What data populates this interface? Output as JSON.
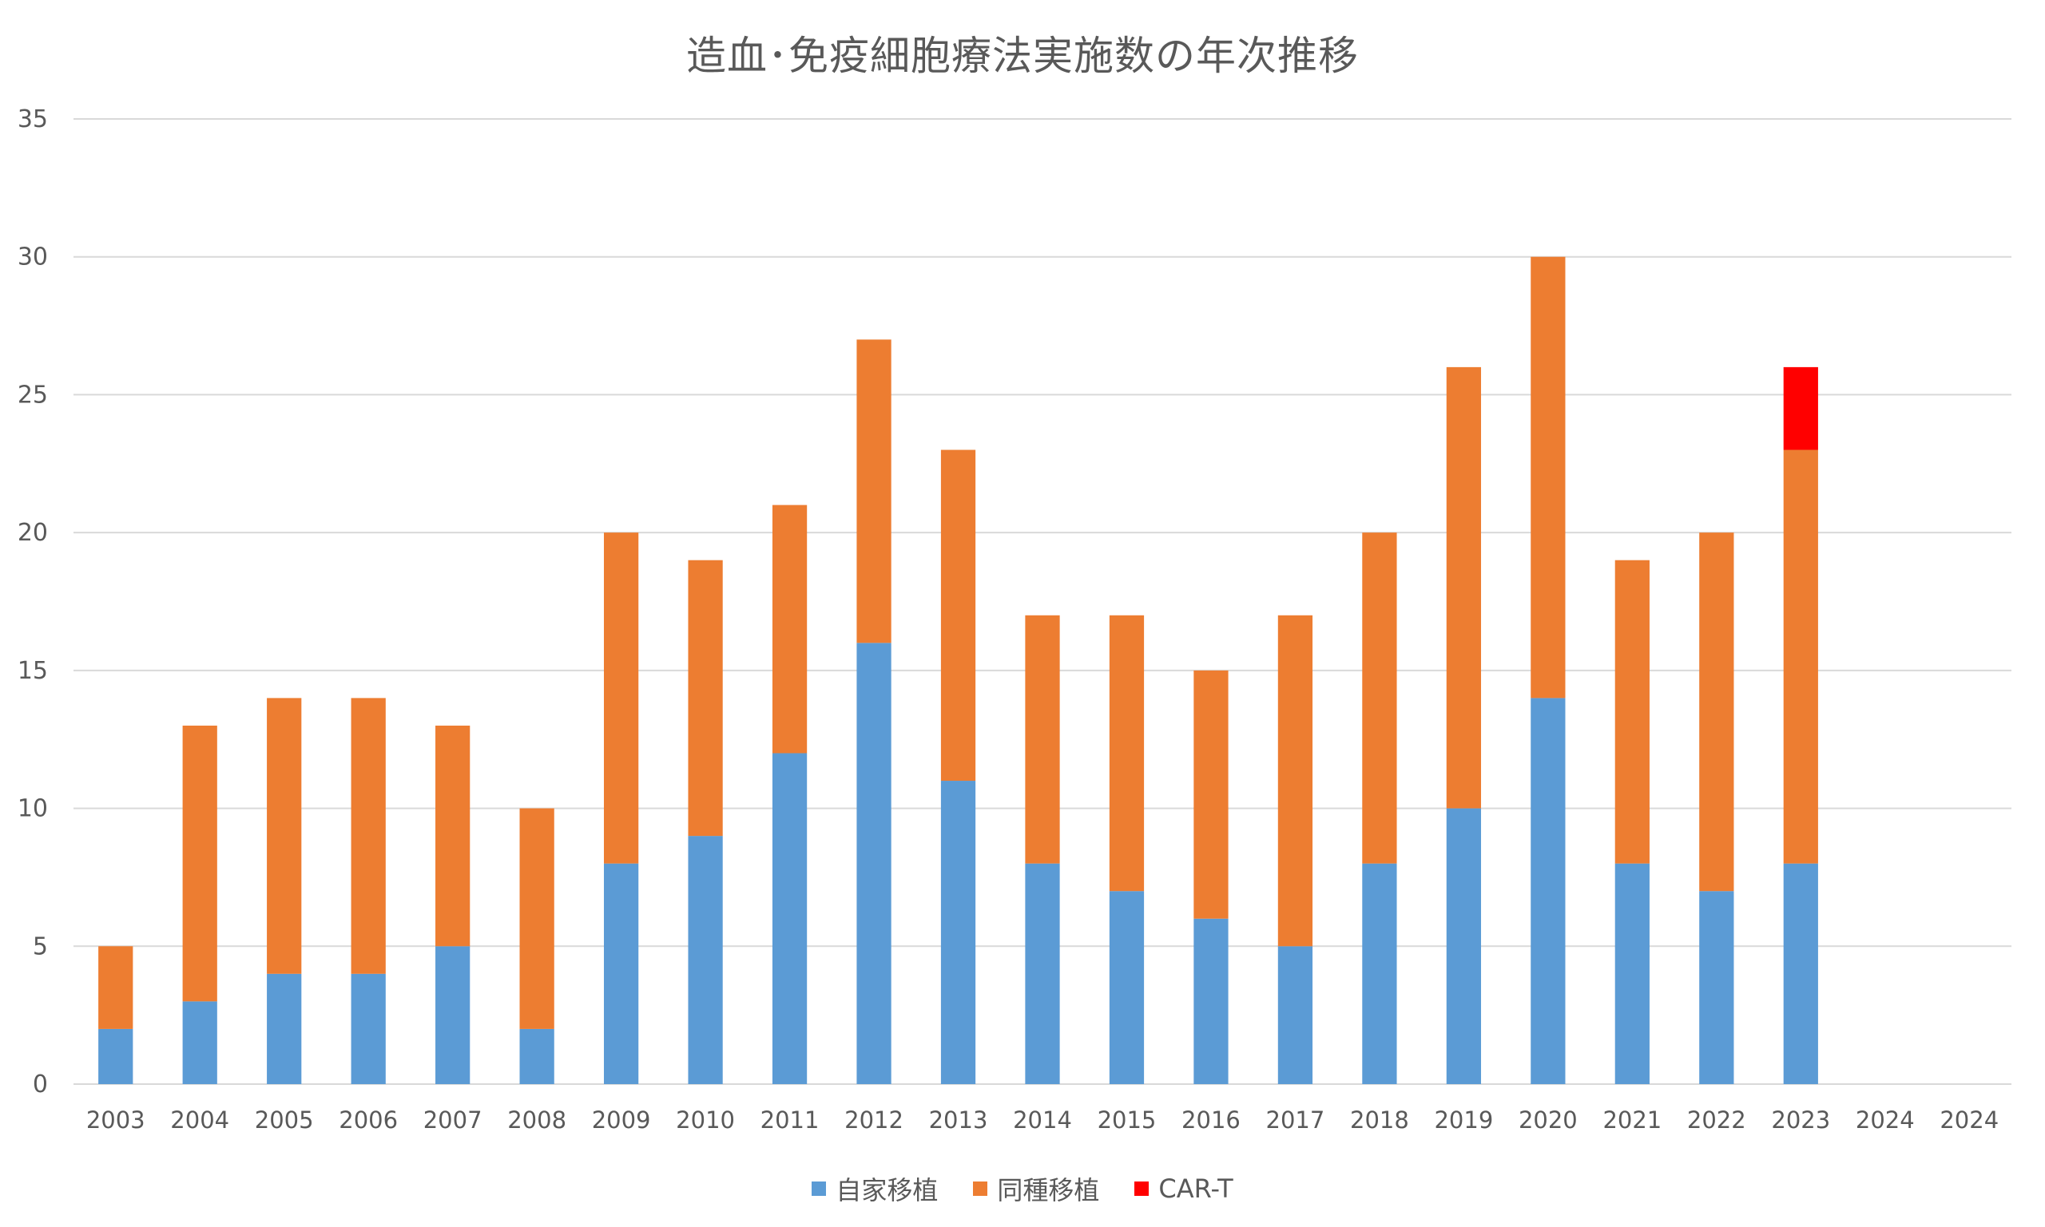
{
  "chart_data": {
    "type": "bar",
    "stacked": true,
    "title": "造血･免疫細胞療法実施数の年次推移",
    "xlabel": "",
    "ylabel": "",
    "ylim": [
      0,
      35
    ],
    "yticks": [
      0,
      5,
      10,
      15,
      20,
      25,
      30,
      35
    ],
    "grid": true,
    "legend_position": "bottom",
    "categories": [
      "2003",
      "2004",
      "2005",
      "2006",
      "2007",
      "2008",
      "2009",
      "2010",
      "2011",
      "2012",
      "2013",
      "2014",
      "2015",
      "2016",
      "2017",
      "2018",
      "2019",
      "2020",
      "2021",
      "2022",
      "2023",
      "2024",
      "2024"
    ],
    "series": [
      {
        "name": "自家移植",
        "color": "#5B9BD5",
        "values": [
          2,
          3,
          4,
          4,
          5,
          2,
          8,
          9,
          12,
          16,
          11,
          8,
          7,
          6,
          5,
          8,
          10,
          14,
          8,
          7,
          8,
          0,
          0
        ]
      },
      {
        "name": "同種移植",
        "color": "#ED7D31",
        "values": [
          3,
          10,
          10,
          10,
          8,
          8,
          12,
          10,
          9,
          11,
          12,
          9,
          10,
          9,
          12,
          12,
          16,
          16,
          11,
          13,
          15,
          0,
          0
        ]
      },
      {
        "name": "CAR-T",
        "color": "#FF0000",
        "values": [
          0,
          0,
          0,
          0,
          0,
          0,
          0,
          0,
          0,
          0,
          0,
          0,
          0,
          0,
          0,
          0,
          0,
          0,
          0,
          0,
          3,
          0,
          0
        ]
      }
    ]
  },
  "colors": {
    "gridline": "#D9D9D9",
    "text": "#595959"
  }
}
